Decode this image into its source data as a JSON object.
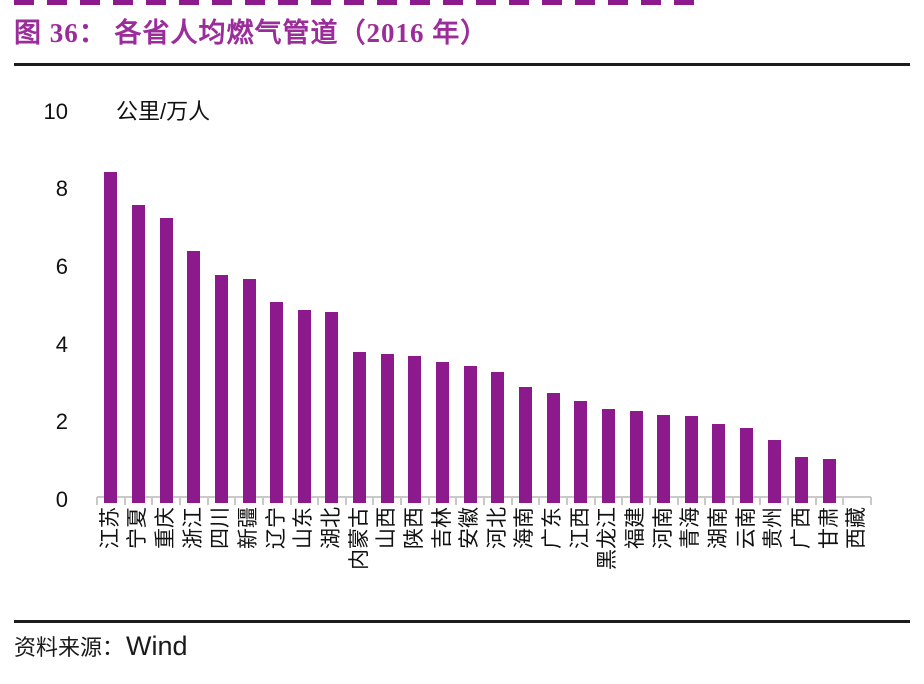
{
  "title": "图 36： 各省人均燃气管道（2016 年）",
  "unit_label": "公里/万人",
  "source": {
    "label": "资料来源：",
    "value": "Wind"
  },
  "colors": {
    "bar": "#8C1A8C",
    "title_text": "#9B2D9B",
    "axis_line": "#C9C9C9",
    "rule": "#1C1C1C",
    "text": "#111111"
  },
  "chart_data": {
    "type": "bar",
    "title": "各省人均燃气管道（2016 年）",
    "xlabel": "",
    "ylabel": "公里/万人",
    "ylim": [
      0,
      10
    ],
    "yticks": [
      10,
      8,
      6,
      4,
      2,
      0
    ],
    "grid": false,
    "legend": "none",
    "categories": [
      "江苏",
      "宁夏",
      "重庆",
      "浙江",
      "四川",
      "新疆",
      "辽宁",
      "山东",
      "湖北",
      "内蒙古",
      "山西",
      "陕西",
      "吉林",
      "安徽",
      "河北",
      "海南",
      "广东",
      "江西",
      "黑龙江",
      "福建",
      "河南",
      "青海",
      "湖南",
      "云南",
      "贵州",
      "广西",
      "甘肃",
      "西藏"
    ],
    "values": [
      8.45,
      7.6,
      7.25,
      6.4,
      5.8,
      5.7,
      5.1,
      4.9,
      4.85,
      3.8,
      3.75,
      3.7,
      3.55,
      3.45,
      3.3,
      2.9,
      2.75,
      2.55,
      2.35,
      2.3,
      2.2,
      2.15,
      1.95,
      1.85,
      1.55,
      1.1,
      1.05,
      0.02
    ],
    "source": "Wind"
  }
}
